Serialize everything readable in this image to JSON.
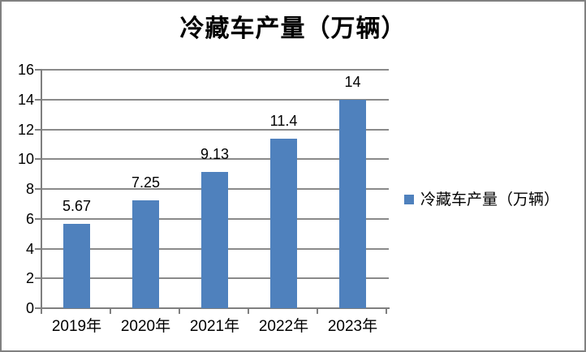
{
  "colors": {
    "bar": "#4F81BD",
    "grid": "#8a8a8a",
    "axis": "#7f7f7f",
    "text": "#000000",
    "border": "#808080",
    "background": "#ffffff"
  },
  "chart_data": {
    "type": "bar",
    "title": "冷藏车产量（万辆）",
    "categories": [
      "2019年",
      "2020年",
      "2021年",
      "2022年",
      "2023年"
    ],
    "series": [
      {
        "name": "冷藏车产量（万辆）",
        "values": [
          5.67,
          7.25,
          9.13,
          11.4,
          14
        ]
      }
    ],
    "data_labels": [
      "5.67",
      "7.25",
      "9.13",
      "11.4",
      "14"
    ],
    "xlabel": "",
    "ylabel": "",
    "ylim": [
      0,
      16
    ],
    "y_ticks": [
      0,
      2,
      4,
      6,
      8,
      10,
      12,
      14,
      16
    ],
    "grid": true,
    "legend_position": "right"
  }
}
